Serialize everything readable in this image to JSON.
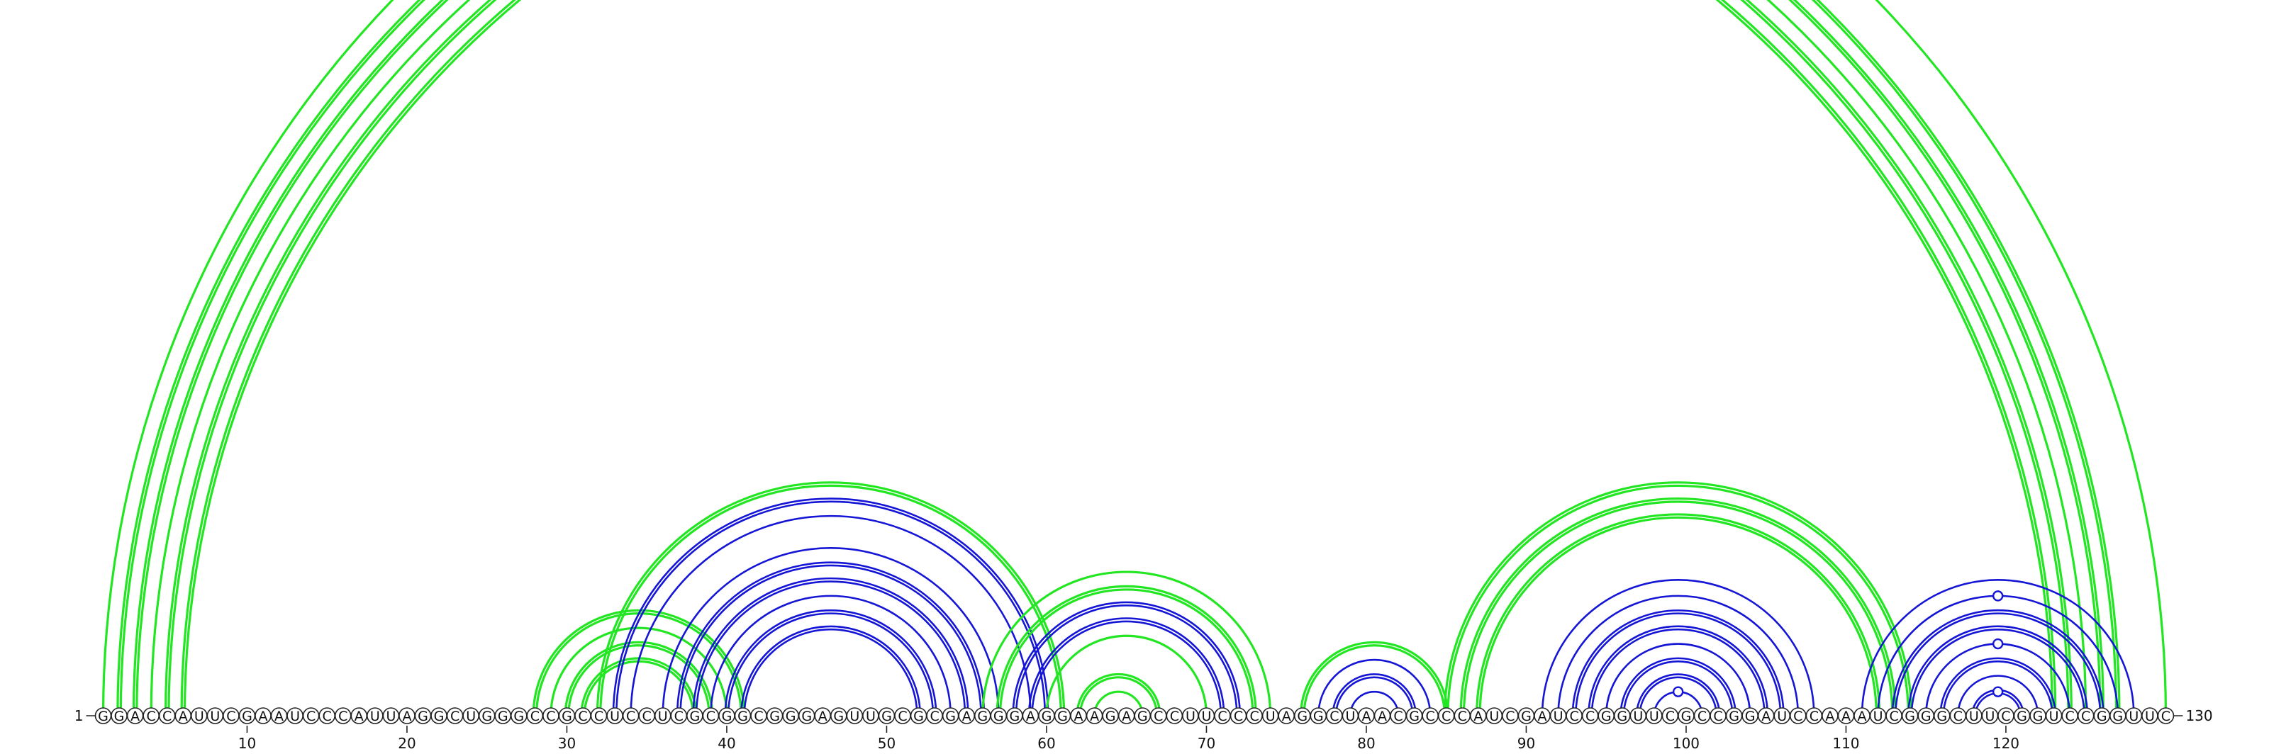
{
  "colors": {
    "pseudoknot": "#22e622",
    "nested": "#1515d6",
    "circle_stroke": "#222222",
    "text": "#111111"
  },
  "sequence": {
    "start_label": "1",
    "end_label": "130",
    "residues": "GGACCAUUCGAAUCCCAUUAGGCUGGGCCGCCUCCUCGCGGCGGGAGUUGCGCGAGGGAGGAAGAGCCUUCCCUAGGCUAACGCCCAUCGAUCCGGUUCGCCGGAUCCAAAUCGGGCUUCGGUCCGGUUC"
  },
  "ticks": [
    {
      "pos": 10,
      "label": "10"
    },
    {
      "pos": 20,
      "label": "20"
    },
    {
      "pos": 30,
      "label": "30"
    },
    {
      "pos": 40,
      "label": "40"
    },
    {
      "pos": 50,
      "label": "50"
    },
    {
      "pos": 60,
      "label": "60"
    },
    {
      "pos": 70,
      "label": "70"
    },
    {
      "pos": 80,
      "label": "80"
    },
    {
      "pos": 90,
      "label": "90"
    },
    {
      "pos": 100,
      "label": "100"
    },
    {
      "pos": 110,
      "label": "110"
    },
    {
      "pos": 120,
      "label": "120"
    }
  ],
  "arcs": [
    {
      "i": 1,
      "j": 130,
      "type": "pk",
      "style": "thin"
    },
    {
      "i": 2,
      "j": 127,
      "type": "pk",
      "style": "double"
    },
    {
      "i": 3,
      "j": 126,
      "type": "pk",
      "style": "double"
    },
    {
      "i": 4,
      "j": 125,
      "type": "pk",
      "style": "thin"
    },
    {
      "i": 5,
      "j": 124,
      "type": "pk",
      "style": "double"
    },
    {
      "i": 6,
      "j": 123,
      "type": "pk",
      "style": "double"
    },
    {
      "i": 28,
      "j": 41,
      "type": "pk",
      "style": "double"
    },
    {
      "i": 29,
      "j": 40,
      "type": "pk",
      "style": "thin"
    },
    {
      "i": 30,
      "j": 39,
      "type": "pk",
      "style": "double"
    },
    {
      "i": 31,
      "j": 38,
      "type": "pk",
      "style": "double"
    },
    {
      "i": 32,
      "j": 61,
      "type": "pk",
      "style": "double"
    },
    {
      "i": 33,
      "j": 60,
      "type": "ns",
      "style": "double"
    },
    {
      "i": 34,
      "j": 59,
      "type": "ns",
      "style": "thin"
    },
    {
      "i": 36,
      "j": 57,
      "type": "ns",
      "style": "thin"
    },
    {
      "i": 37,
      "j": 56,
      "type": "ns",
      "style": "double"
    },
    {
      "i": 38,
      "j": 55,
      "type": "ns",
      "style": "double"
    },
    {
      "i": 39,
      "j": 54,
      "type": "ns",
      "style": "thin"
    },
    {
      "i": 40,
      "j": 53,
      "type": "ns",
      "style": "double"
    },
    {
      "i": 41,
      "j": 52,
      "type": "ns",
      "style": "double"
    },
    {
      "i": 56,
      "j": 74,
      "type": "pk",
      "style": "thin"
    },
    {
      "i": 57,
      "j": 73,
      "type": "pk",
      "style": "double"
    },
    {
      "i": 58,
      "j": 72,
      "type": "ns",
      "style": "double"
    },
    {
      "i": 59,
      "j": 71,
      "type": "ns",
      "style": "double"
    },
    {
      "i": 60,
      "j": 70,
      "type": "pk",
      "style": "thin"
    },
    {
      "i": 62,
      "j": 67,
      "type": "pk",
      "style": "double"
    },
    {
      "i": 63,
      "j": 66,
      "type": "pk",
      "style": "thin"
    },
    {
      "i": 76,
      "j": 85,
      "type": "pk",
      "style": "double"
    },
    {
      "i": 77,
      "j": 84,
      "type": "ns",
      "style": "thin"
    },
    {
      "i": 78,
      "j": 83,
      "type": "ns",
      "style": "double"
    },
    {
      "i": 79,
      "j": 82,
      "type": "ns",
      "style": "thin"
    },
    {
      "i": 85,
      "j": 114,
      "type": "pk",
      "style": "double"
    },
    {
      "i": 86,
      "j": 113,
      "type": "pk",
      "style": "double"
    },
    {
      "i": 87,
      "j": 112,
      "type": "pk",
      "style": "double"
    },
    {
      "i": 91,
      "j": 108,
      "type": "ns",
      "style": "thin"
    },
    {
      "i": 92,
      "j": 107,
      "type": "ns",
      "style": "thin"
    },
    {
      "i": 93,
      "j": 106,
      "type": "ns",
      "style": "double"
    },
    {
      "i": 94,
      "j": 105,
      "type": "ns",
      "style": "double"
    },
    {
      "i": 95,
      "j": 104,
      "type": "ns",
      "style": "thin"
    },
    {
      "i": 96,
      "j": 103,
      "type": "ns",
      "style": "double"
    },
    {
      "i": 97,
      "j": 102,
      "type": "ns",
      "style": "double"
    },
    {
      "i": 98,
      "j": 101,
      "type": "ns",
      "style": "thin"
    },
    {
      "i": 111,
      "j": 128,
      "type": "ns",
      "style": "thin"
    },
    {
      "i": 112,
      "j": 127,
      "type": "ns",
      "style": "thin"
    },
    {
      "i": 113,
      "j": 126,
      "type": "ns",
      "style": "double"
    },
    {
      "i": 114,
      "j": 125,
      "type": "ns",
      "style": "double"
    },
    {
      "i": 115,
      "j": 124,
      "type": "ns",
      "style": "thin"
    },
    {
      "i": 116,
      "j": 123,
      "type": "ns",
      "style": "double"
    },
    {
      "i": 117,
      "j": 122,
      "type": "ns",
      "style": "thin"
    },
    {
      "i": 118,
      "j": 121,
      "type": "ns",
      "style": "double"
    }
  ],
  "markers": [
    {
      "i": 1,
      "j": 130,
      "type": "pk"
    },
    {
      "i": 98,
      "j": 101,
      "type": "ns"
    },
    {
      "i": 112,
      "j": 127,
      "type": "ns"
    },
    {
      "i": 115,
      "j": 124,
      "type": "ns"
    },
    {
      "i": 118,
      "j": 121,
      "type": "ns"
    }
  ]
}
